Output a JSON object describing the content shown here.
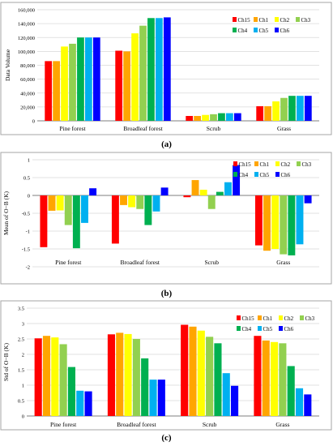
{
  "captions": {
    "a": "(a)",
    "b": "(b)",
    "c": "(c)"
  },
  "colors": {
    "Ch15": "#ff0000",
    "Ch1": "#ffa500",
    "Ch2": "#ffff00",
    "Ch3": "#92d050",
    "Ch4": "#00b050",
    "Ch5": "#00b0f0",
    "Ch6": "#0000ff"
  },
  "chart_data": [
    {
      "type": "bar",
      "title": "",
      "xlabel": "",
      "ylabel": "Data Volume",
      "categories": [
        "Pine forest",
        "Broadleaf forest",
        "Scrub",
        "Grass"
      ],
      "ylim": [
        0,
        160000
      ],
      "yticks": [
        0,
        20000,
        40000,
        60000,
        80000,
        100000,
        120000,
        140000,
        160000
      ],
      "ytick_labels": [
        "0",
        "20,000",
        "40,000",
        "60,000",
        "80,000",
        "100,000",
        "120,000",
        "140,000",
        "160,000"
      ],
      "grid": true,
      "legend_position": "top-right",
      "series": [
        {
          "name": "Ch15",
          "values": [
            86000,
            101000,
            7000,
            21000
          ]
        },
        {
          "name": "Ch1",
          "values": [
            86000,
            100000,
            7000,
            21000
          ]
        },
        {
          "name": "Ch2",
          "values": [
            107000,
            126000,
            8500,
            28000
          ]
        },
        {
          "name": "Ch3",
          "values": [
            111000,
            137000,
            9500,
            33000
          ]
        },
        {
          "name": "Ch4",
          "values": [
            120000,
            148000,
            11000,
            36000
          ]
        },
        {
          "name": "Ch5",
          "values": [
            120000,
            148000,
            11000,
            36000
          ]
        },
        {
          "name": "Ch6",
          "values": [
            120000,
            149000,
            11000,
            36000
          ]
        }
      ]
    },
    {
      "type": "bar",
      "title": "",
      "xlabel": "",
      "ylabel": "Mean of O−B (K)",
      "categories": [
        "Pine forest",
        "Broadleaf forest",
        "Scrub",
        "Grass"
      ],
      "ylim": [
        -2,
        1
      ],
      "yticks": [
        -2,
        -1.5,
        -1,
        -0.5,
        0,
        0.5,
        1
      ],
      "ytick_labels": [
        "-2",
        "-1.5",
        "-1",
        "-0.5",
        "0",
        "0.5",
        "1"
      ],
      "grid": true,
      "legend_position": "top-right",
      "series": [
        {
          "name": "Ch15",
          "values": [
            -1.45,
            -1.35,
            -0.05,
            -1.4
          ]
        },
        {
          "name": "Ch1",
          "values": [
            -0.43,
            -0.27,
            0.43,
            -1.55
          ]
        },
        {
          "name": "Ch2",
          "values": [
            -0.42,
            -0.33,
            0.16,
            -1.5
          ]
        },
        {
          "name": "Ch3",
          "values": [
            -0.83,
            -0.38,
            -0.38,
            -1.65
          ]
        },
        {
          "name": "Ch4",
          "values": [
            -1.48,
            -0.83,
            0.1,
            -1.68
          ]
        },
        {
          "name": "Ch5",
          "values": [
            -0.77,
            -0.45,
            0.37,
            -1.37
          ]
        },
        {
          "name": "Ch6",
          "values": [
            0.2,
            0.22,
            0.85,
            -0.22
          ]
        }
      ]
    },
    {
      "type": "bar",
      "title": "",
      "xlabel": "",
      "ylabel": "Std of O−B (K)",
      "categories": [
        "Pine forest",
        "Broadleaf forest",
        "Scrub",
        "Grass"
      ],
      "ylim": [
        0,
        3.5
      ],
      "yticks": [
        0,
        0.5,
        1,
        1.5,
        2,
        2.5,
        3,
        3.5
      ],
      "ytick_labels": [
        "0",
        "0.5",
        "1",
        "1.5",
        "2",
        "2.5",
        "3",
        "3.5"
      ],
      "grid": true,
      "legend_position": "top-right",
      "series": [
        {
          "name": "Ch15",
          "values": [
            2.52,
            2.65,
            2.96,
            2.6
          ]
        },
        {
          "name": "Ch1",
          "values": [
            2.6,
            2.7,
            2.9,
            2.45
          ]
        },
        {
          "name": "Ch2",
          "values": [
            2.55,
            2.66,
            2.77,
            2.4
          ]
        },
        {
          "name": "Ch3",
          "values": [
            2.33,
            2.5,
            2.57,
            2.36
          ]
        },
        {
          "name": "Ch4",
          "values": [
            1.59,
            1.87,
            2.36,
            1.62
          ]
        },
        {
          "name": "Ch5",
          "values": [
            0.82,
            1.18,
            1.39,
            0.9
          ]
        },
        {
          "name": "Ch6",
          "values": [
            0.8,
            1.18,
            0.98,
            0.7
          ]
        }
      ]
    }
  ]
}
